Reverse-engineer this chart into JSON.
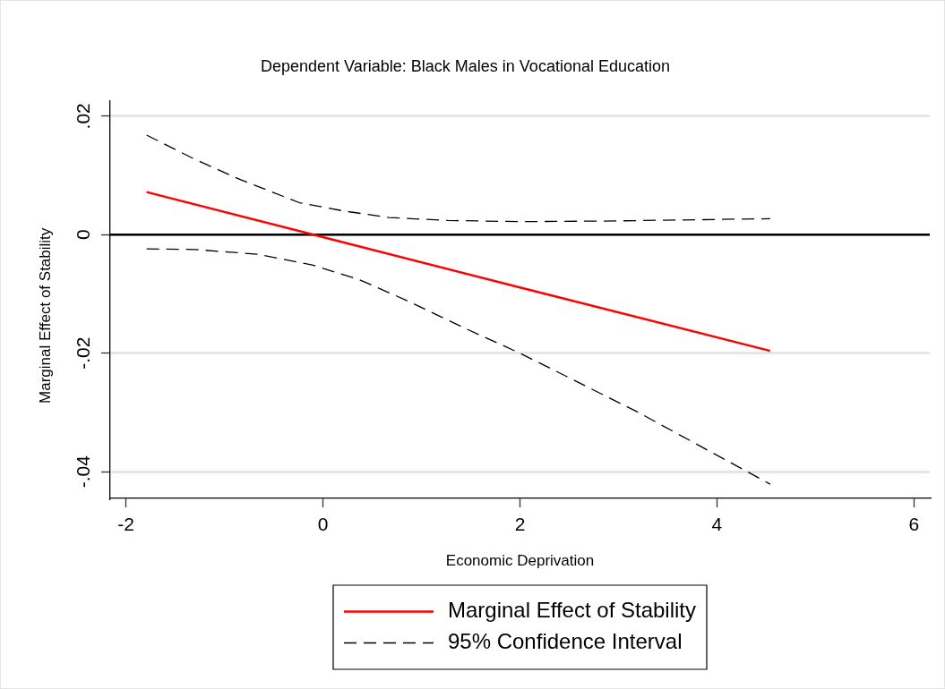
{
  "chart_data": {
    "type": "line",
    "title": "Dependent Variable: Black Males in Vocational Education",
    "xlabel": "Economic Deprivation",
    "ylabel": "Marginal Effect of Stability",
    "xlim": [
      -2.16,
      6.16
    ],
    "xticks": [
      -2,
      0,
      2,
      4,
      6
    ],
    "ylim": [
      -0.0445,
      0.0226
    ],
    "yticks": [
      {
        "value": 0.02,
        "label": ".02"
      },
      {
        "value": 0,
        "label": "0"
      },
      {
        "value": -0.02,
        "label": "-.02"
      },
      {
        "value": -0.04,
        "label": "-.04"
      }
    ],
    "grid": "y",
    "legend": "bottom",
    "marker": "none",
    "ref_lines": [
      {
        "axis": "y",
        "value": 0,
        "color": "#000000"
      }
    ],
    "series": [
      {
        "name": "Marginal Effect of Stability",
        "color": "#ff0000",
        "line_style": "solid",
        "x": [
          -1.79,
          0,
          2,
          4.54
        ],
        "values": [
          0.0072,
          -0.0004,
          -0.0089,
          -0.0196
        ]
      },
      {
        "name": "95% Confidence Interval",
        "color": "#000000",
        "line_style": "dashed",
        "x": [
          -1.79,
          -1.31,
          -0.84,
          -0.24,
          0.21,
          0.67,
          1.27,
          2.0,
          2.85,
          4.54
        ],
        "values": [
          0.0168,
          0.0128,
          0.0093,
          0.0054,
          0.004,
          0.0029,
          0.0024,
          0.0022,
          0.0023,
          0.0027
        ]
      },
      {
        "color": "#000000",
        "line_style": "dashed",
        "x": [
          -1.79,
          -1.3,
          -0.66,
          -0.11,
          0.37,
          0.85,
          1.43,
          2.0,
          3.18,
          4.54
        ],
        "values": [
          -0.0024,
          -0.0025,
          -0.0033,
          -0.0051,
          -0.0076,
          -0.0111,
          -0.0157,
          -0.02,
          -0.0298,
          -0.0421
        ]
      }
    ]
  }
}
